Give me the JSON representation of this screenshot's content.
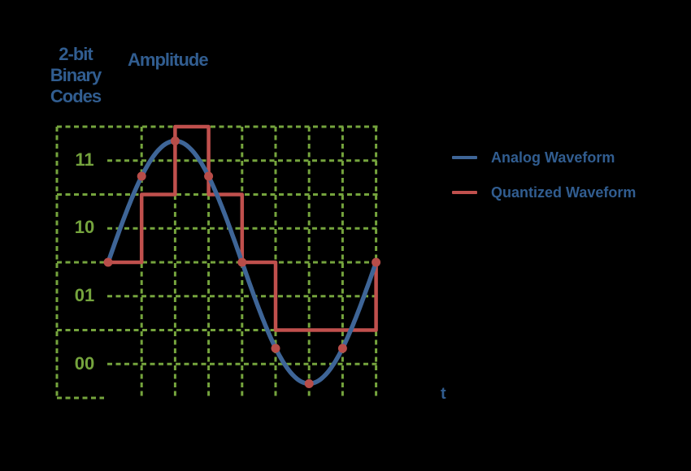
{
  "header": {
    "codes_title_lines": [
      "2-bit",
      "Binary",
      "Codes"
    ],
    "amplitude_label": "Amplitude"
  },
  "axis": {
    "binary_codes": [
      "11",
      "10",
      "01",
      "00"
    ],
    "time_label": "t"
  },
  "legend": {
    "items": [
      {
        "label": "Analog Waveform",
        "color": "#3e6597"
      },
      {
        "label": "Quantized Waveform",
        "color": "#c0504d"
      }
    ]
  },
  "colors": {
    "background": "#000000",
    "grid": "#75a43d",
    "code_labels": "#75a43d",
    "analog": "#3e6597",
    "quantized": "#c0504d",
    "sample_dot": "#b84d49",
    "text": "#315d90"
  },
  "chart_data": {
    "type": "line",
    "xlabel": "t",
    "ylabel": "Amplitude",
    "x": [
      0,
      1,
      2,
      3,
      4,
      5,
      6,
      7,
      8
    ],
    "ylim": [
      0,
      4
    ],
    "grid": "dashed",
    "legend_position": "right",
    "series": [
      {
        "name": "Analog Waveform",
        "style": "smooth-sine",
        "values": [
          2,
          3.27,
          3.79,
          3.27,
          2,
          0.73,
          0.21,
          0.73,
          2
        ]
      },
      {
        "name": "Quantized Waveform",
        "style": "step",
        "values": [
          2,
          3,
          4,
          3,
          2,
          1,
          1,
          1,
          2
        ]
      }
    ],
    "analog_model": {
      "shape": "sine",
      "center_level": 2,
      "amplitude_levels": 1.79,
      "period_samples": 8
    },
    "sample_markers": true,
    "level_code_map": [
      {
        "band_center_level": 3.5,
        "code": "11"
      },
      {
        "band_center_level": 2.5,
        "code": "10"
      },
      {
        "band_center_level": 1.5,
        "code": "01"
      },
      {
        "band_center_level": 0.5,
        "code": "00"
      }
    ]
  }
}
